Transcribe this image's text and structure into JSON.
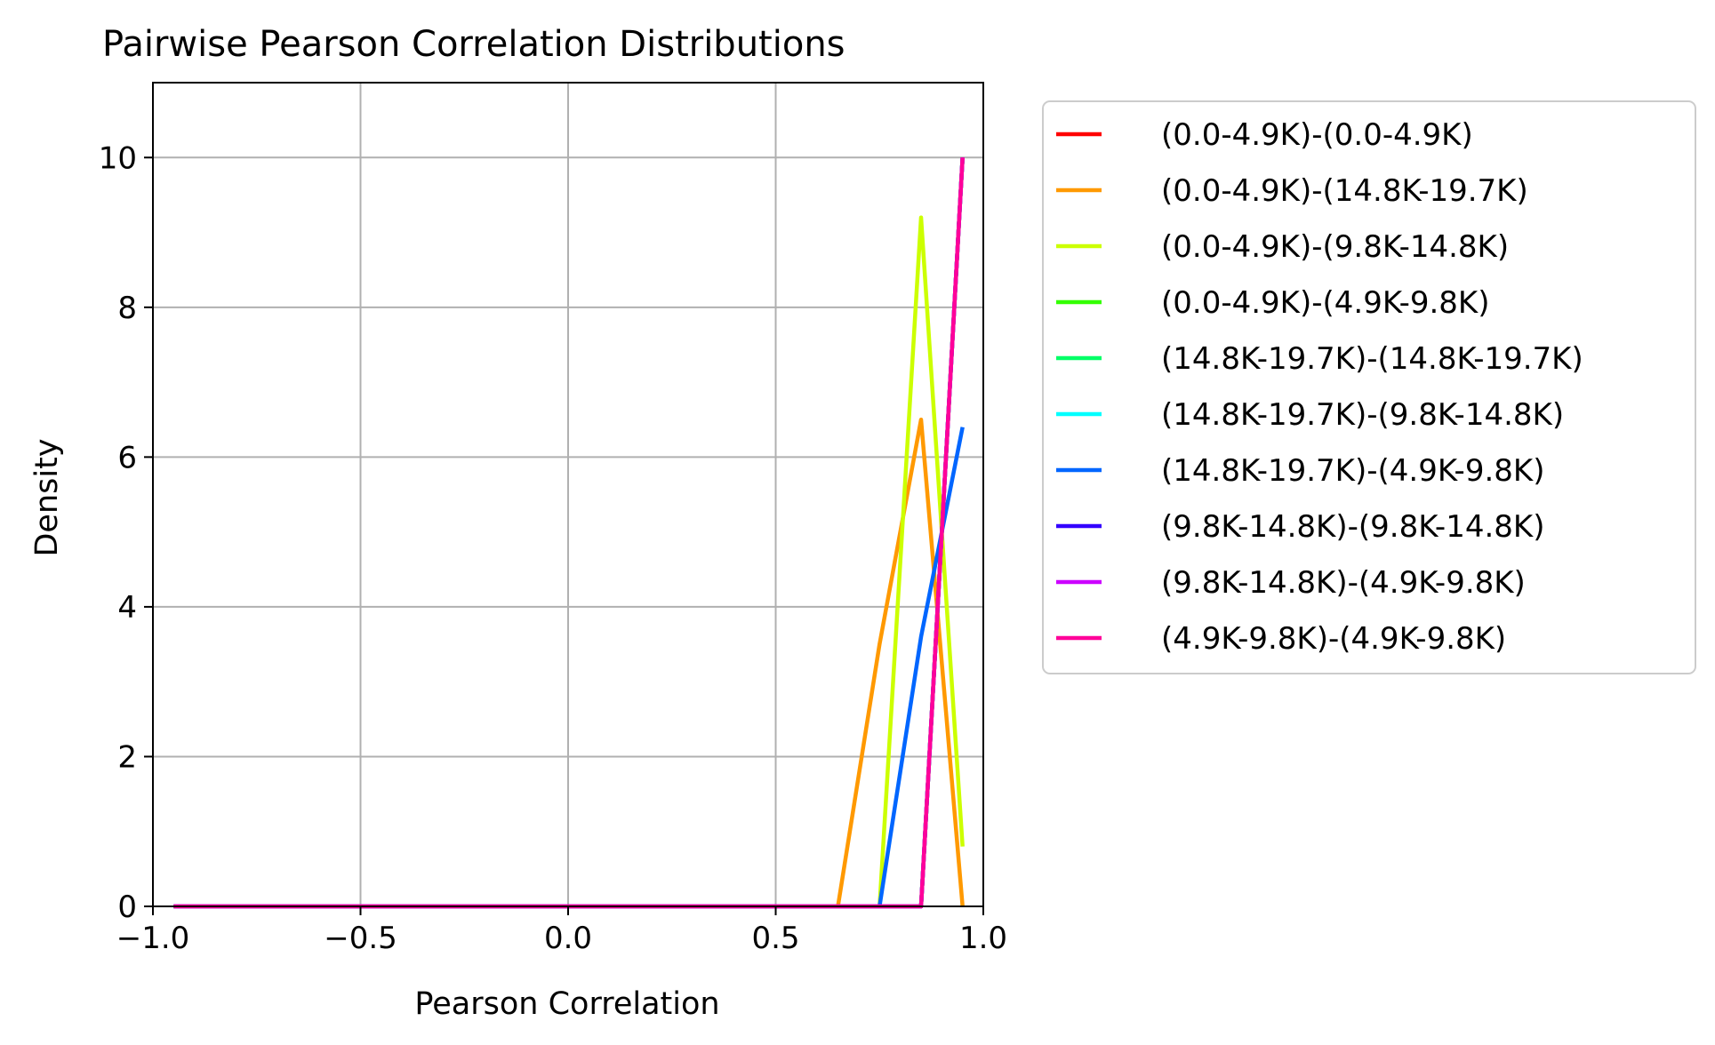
{
  "chart_data": {
    "type": "line",
    "title": "Pairwise Pearson Correlation Distributions",
    "xlabel": "Pearson Correlation",
    "ylabel": "Density",
    "xlim": [
      -1.0,
      1.0
    ],
    "ylim": [
      0,
      11
    ],
    "xticks": [
      -1.0,
      -0.5,
      0.0,
      0.5,
      1.0
    ],
    "xtick_labels": [
      "−1.0",
      "−0.5",
      "0.0",
      "0.5",
      "1.0"
    ],
    "yticks": [
      0,
      2,
      4,
      6,
      8,
      10
    ],
    "ytick_labels": [
      "0",
      "2",
      "4",
      "6",
      "8",
      "10"
    ],
    "grid": true,
    "legend_position": "outside-right",
    "x": [
      -0.95,
      -0.85,
      -0.75,
      -0.65,
      -0.55,
      -0.45,
      -0.35,
      -0.25,
      -0.15,
      -0.05,
      0.05,
      0.15,
      0.25,
      0.35,
      0.45,
      0.55,
      0.65,
      0.75,
      0.85,
      0.95
    ],
    "series": [
      {
        "name": "(0.0-4.9K)-(0.0-4.9K)",
        "color": "#ff0000",
        "values": [
          0,
          0,
          0,
          0,
          0,
          0,
          0,
          0,
          0,
          0,
          0,
          0,
          0,
          0,
          0,
          0,
          0,
          0,
          0,
          10
        ]
      },
      {
        "name": "(0.0-4.9K)-(14.8K-19.7K)",
        "color": "#ff9900",
        "values": [
          0,
          0,
          0,
          0,
          0,
          0,
          0,
          0,
          0,
          0,
          0,
          0,
          0,
          0,
          0,
          0,
          0,
          3.5,
          6.5,
          0
        ]
      },
      {
        "name": "(0.0-4.9K)-(9.8K-14.8K)",
        "color": "#ccff00",
        "values": [
          0,
          0,
          0,
          0,
          0,
          0,
          0,
          0,
          0,
          0,
          0,
          0,
          0,
          0,
          0,
          0,
          0,
          0,
          9.2,
          0.8
        ]
      },
      {
        "name": "(0.0-4.9K)-(4.9K-9.8K)",
        "color": "#33ff00",
        "values": [
          0,
          0,
          0,
          0,
          0,
          0,
          0,
          0,
          0,
          0,
          0,
          0,
          0,
          0,
          0,
          0,
          0,
          0,
          0,
          10
        ]
      },
      {
        "name": "(14.8K-19.7K)-(14.8K-19.7K)",
        "color": "#00ff66",
        "values": [
          0,
          0,
          0,
          0,
          0,
          0,
          0,
          0,
          0,
          0,
          0,
          0,
          0,
          0,
          0,
          0,
          0,
          0,
          0,
          10
        ]
      },
      {
        "name": "(14.8K-19.7K)-(9.8K-14.8K)",
        "color": "#00ffff",
        "values": [
          0,
          0,
          0,
          0,
          0,
          0,
          0,
          0,
          0,
          0,
          0,
          0,
          0,
          0,
          0,
          0,
          0,
          0,
          0,
          10
        ]
      },
      {
        "name": "(14.8K-19.7K)-(4.9K-9.8K)",
        "color": "#0066ff",
        "values": [
          0,
          0,
          0,
          0,
          0,
          0,
          0,
          0,
          0,
          0,
          0,
          0,
          0,
          0,
          0,
          0,
          0,
          0,
          3.6,
          6.4
        ]
      },
      {
        "name": "(9.8K-14.8K)-(9.8K-14.8K)",
        "color": "#3300ff",
        "values": [
          0,
          0,
          0,
          0,
          0,
          0,
          0,
          0,
          0,
          0,
          0,
          0,
          0,
          0,
          0,
          0,
          0,
          0,
          0,
          10
        ]
      },
      {
        "name": "(9.8K-14.8K)-(4.9K-9.8K)",
        "color": "#cc00ff",
        "values": [
          0,
          0,
          0,
          0,
          0,
          0,
          0,
          0,
          0,
          0,
          0,
          0,
          0,
          0,
          0,
          0,
          0,
          0,
          0,
          10
        ]
      },
      {
        "name": "(4.9K-9.8K)-(4.9K-9.8K)",
        "color": "#ff0099",
        "values": [
          0,
          0,
          0,
          0,
          0,
          0,
          0,
          0,
          0,
          0,
          0,
          0,
          0,
          0,
          0,
          0,
          0,
          0,
          0,
          10
        ]
      }
    ]
  }
}
